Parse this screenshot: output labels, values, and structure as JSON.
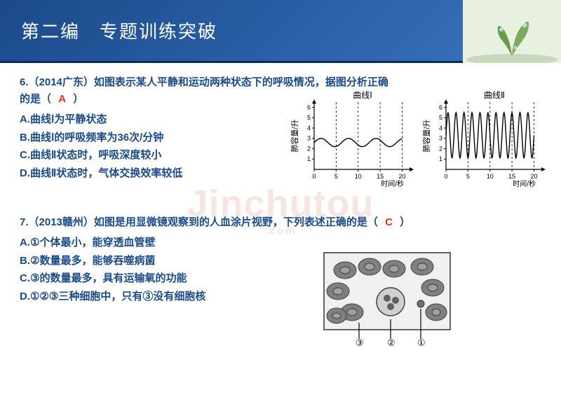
{
  "header": {
    "title": "第二编　专题训练突破"
  },
  "watermark": {
    "main": "Jinchutou",
    "sub": ".com"
  },
  "q6": {
    "stem_a": "6.（2014广东）如图表示某人平静和运动两种状态下的呼吸情况，据图分析正确",
    "stem_b": "的是（",
    "stem_c": "）",
    "answer": "A",
    "opts": {
      "A": "A.曲线Ⅰ为平静状态",
      "B": "B.曲线Ⅰ的呼吸频率为36次/分钟",
      "C": "C.曲线Ⅱ状态时，呼吸深度较小",
      "D": "D.曲线Ⅱ状态时，气体交换效率较低"
    },
    "chart1": {
      "title": "曲线Ⅰ",
      "ylabel": "肺容量/升",
      "xlabel": "时间/秒",
      "xticks": [
        0,
        5,
        10,
        15,
        20
      ],
      "yticks": [
        1,
        2,
        3,
        4,
        5,
        6
      ],
      "ylim": [
        0,
        6.5
      ],
      "xlim": [
        0,
        22
      ],
      "wave_amp": 0.4,
      "wave_center": 2.6,
      "cycles": 3.2,
      "line_color": "#000000",
      "grid_dash": "3,3"
    },
    "chart2": {
      "title": "曲线Ⅱ",
      "ylabel": "肺容量/升",
      "xlabel": "时间/秒",
      "xticks": [
        0,
        5,
        10,
        15,
        20
      ],
      "yticks": [
        1,
        2,
        3,
        4,
        5,
        6
      ],
      "ylim": [
        0,
        6.5
      ],
      "xlim": [
        0,
        22
      ],
      "wave_amp": 2.2,
      "wave_center": 3.3,
      "cycles": 11,
      "line_color": "#000000",
      "grid_dash": "3,3"
    }
  },
  "q7": {
    "stem_a": "7.（2013赣州）如图是用显微镜观察到的人血涂片视野，下列表述正确的是（",
    "stem_c": "）",
    "answer": "C",
    "opts": {
      "A": "A.①个体最小，能穿透血管壁",
      "B": "B.②数量最多，能够吞噬病菌",
      "C": "C.③的数量最多，具有运输氧的功能",
      "D": "D.①②③三种细胞中，只有③没有细胞核"
    },
    "labels": {
      "l1": "③",
      "l2": "②",
      "l3": "①"
    }
  }
}
